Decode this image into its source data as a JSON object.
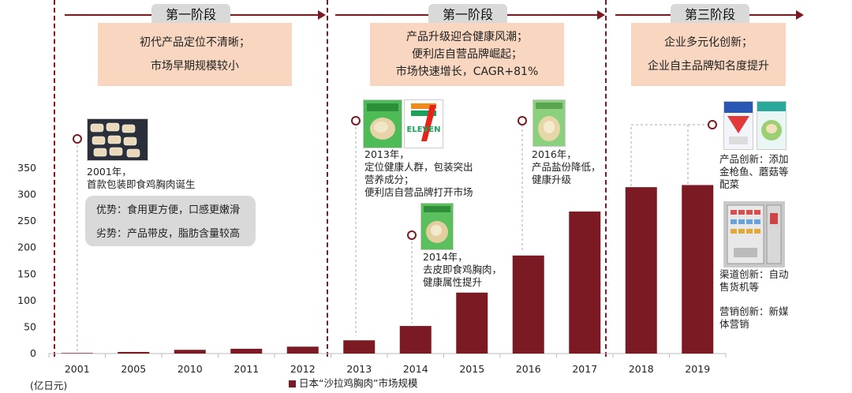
{
  "stages": [
    {
      "label": "第一阶段",
      "desc": [
        "初代产品定位不清晰；",
        "市场早期规模较小"
      ]
    },
    {
      "label": "第一阶段",
      "desc": [
        "产品升级迎合健康风潮；",
        "便利店自营品牌崛起；",
        "市场快速增长，CAGR+81%"
      ]
    },
    {
      "label": "第三阶段",
      "desc": [
        "企业多元化创新；",
        "企业自主品牌知名度提升"
      ]
    }
  ],
  "pros_cons": [
    "优势：食用更方便，口感更嫩滑",
    "劣势：产品带皮，脂肪含量较高"
  ],
  "annotations": {
    "a2001": [
      "2001年，",
      "首款包装即食鸡胸肉诞生"
    ],
    "a2013": [
      "2013年，",
      "定位健康人群，包装突出",
      "营养成分；",
      "便利店自营品牌打开市场"
    ],
    "a2014": [
      "2014年，",
      "去皮即食鸡胸肉，",
      "健康属性提升"
    ],
    "a2016": [
      "2016年，",
      "产品盐份降低，",
      "健康升级"
    ],
    "right": [
      "产品创新：添加",
      "金枪鱼、蘑菇等",
      "配菜"
    ],
    "channel": [
      "渠道创新：自动",
      "售货机等"
    ],
    "marketing": [
      "营销创新：新媒",
      "体营销"
    ]
  },
  "logo_text": "ELEVEN",
  "colors": {
    "bar": "#7b1a22",
    "accent": "#7b1a22",
    "desc_box": "#f8d6c0",
    "gray_box": "#d9d9d9"
  },
  "chart_data": {
    "type": "bar",
    "categories": [
      "2001",
      "2005",
      "2010",
      "2011",
      "2012",
      "2013",
      "2014",
      "2015",
      "2016",
      "2017",
      "2018",
      "2019"
    ],
    "series": [
      {
        "name": "日本“沙拉鸡胸肉”市场规模",
        "values": [
          1,
          3,
          7,
          9,
          13,
          25,
          52,
          115,
          185,
          268,
          314,
          318
        ]
      }
    ],
    "ylim": [
      0,
      350
    ],
    "yticks": [
      0,
      50,
      100,
      150,
      200,
      250,
      300,
      350
    ],
    "ylabel": "(亿日元)",
    "legend_position": "bottom"
  }
}
